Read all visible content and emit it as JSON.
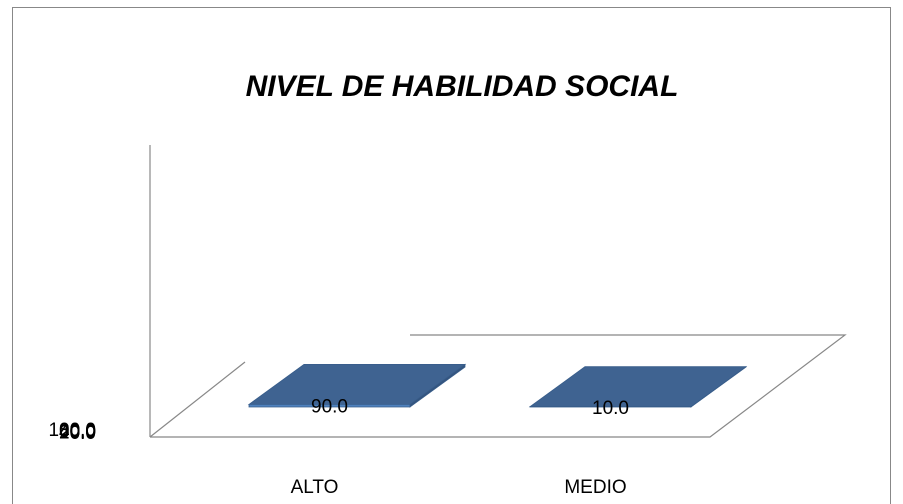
{
  "chart_data": {
    "type": "bar3d",
    "title": "NIVEL DE HABILIDAD SOCIAL",
    "categories": [
      "ALTO",
      "MEDIO"
    ],
    "values": [
      90,
      10
    ],
    "value_labels": [
      "90.0",
      "10.0"
    ],
    "color": "#4f81bd",
    "ylim": [
      0,
      100
    ],
    "yticks": [
      {
        "value": 0,
        "label": "0.0"
      },
      {
        "value": 20,
        "label": "20.0"
      },
      {
        "value": 40,
        "label": "40.0"
      },
      {
        "value": 60,
        "label": "60.0"
      },
      {
        "value": 80,
        "label": "80.0"
      },
      {
        "value": 100,
        "label": "100.0"
      }
    ]
  }
}
